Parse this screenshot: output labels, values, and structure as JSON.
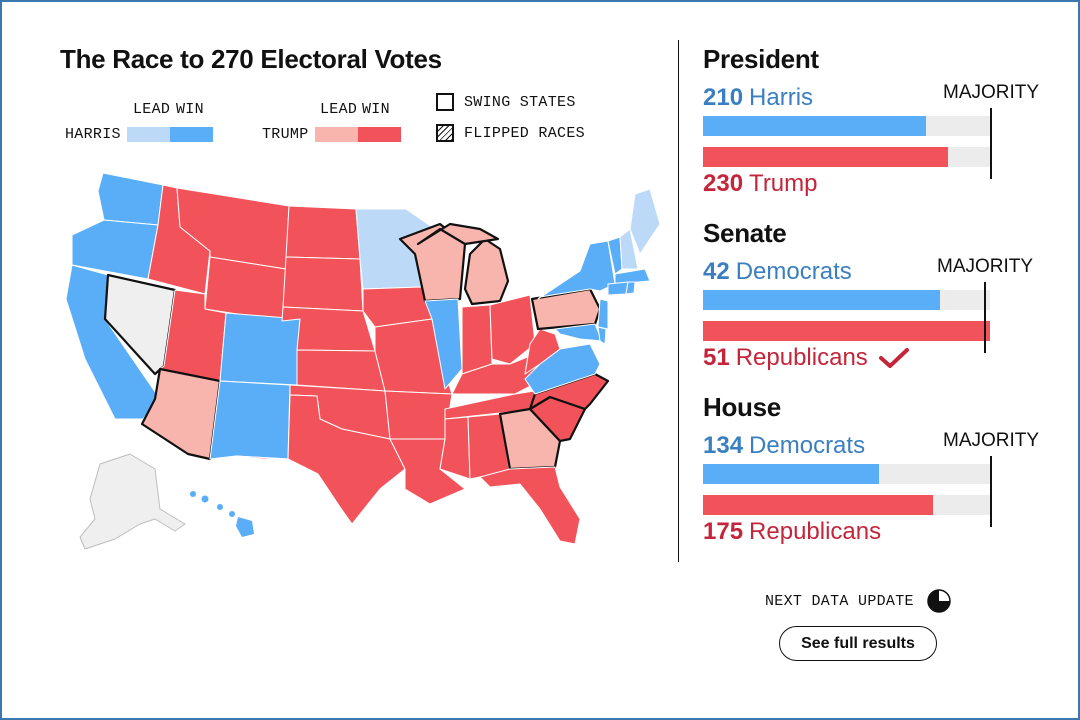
{
  "map": {
    "title": "The Race to 270 Electoral Votes",
    "legend": {
      "lead_label": "LEAD",
      "win_label": "WIN",
      "harris_label": "HARRIS",
      "trump_label": "TRUMP",
      "swing_label": "SWING STATES",
      "flipped_label": "FLIPPED RACES"
    },
    "colors": {
      "harris_lead": "#bcd9f8",
      "harris_win": "#5aaef7",
      "trump_lead": "#f7b5ae",
      "trump_win": "#f2535a",
      "uncalled": "#efefef"
    }
  },
  "president": {
    "heading": "President",
    "dem_count": "210",
    "dem_name": "Harris",
    "rep_count": "230",
    "rep_name": "Trump",
    "majority_label": "MAJORITY",
    "dem_share": 0.777,
    "rep_share": 0.852
  },
  "senate": {
    "heading": "Senate",
    "dem_count": "42",
    "dem_name": "Democrats",
    "rep_count": "51",
    "rep_name": "Republicans",
    "majority_label": "MAJORITY",
    "dem_share": 0.826,
    "rep_share": 1.0
  },
  "house": {
    "heading": "House",
    "dem_count": "134",
    "dem_name": "Democrats",
    "rep_count": "175",
    "rep_name": "Republicans",
    "majority_label": "MAJORITY",
    "dem_share": 0.613,
    "rep_share": 0.801
  },
  "footer": {
    "next_update_label": "NEXT DATA UPDATE",
    "update_progress": 0.25,
    "button_label": "See full results"
  }
}
